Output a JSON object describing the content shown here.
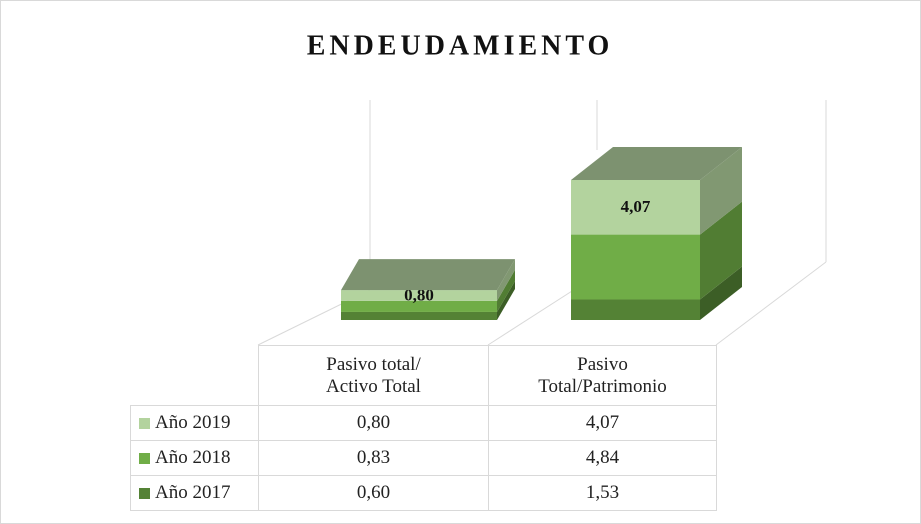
{
  "chart_data": {
    "type": "bar3d_stacked",
    "title": "ENDEUDAMIENTO",
    "categories": [
      "Pasivo total/\nActivo Total",
      "Pasivo\nTotal/Patrimonio"
    ],
    "top_color": "#7d9270",
    "series": [
      {
        "name": "Año 2019",
        "color": "#b3d39e",
        "values": [
          0.8,
          4.07
        ],
        "value_labels": [
          "0,80",
          "4,07"
        ],
        "show_labels": true
      },
      {
        "name": "Año 2018",
        "color": "#70ad47",
        "values": [
          0.83,
          4.84
        ],
        "value_labels": [
          "0,83",
          "4,84"
        ],
        "show_labels": false
      },
      {
        "name": "Año 2017",
        "color": "#548235",
        "values": [
          0.6,
          1.53
        ],
        "value_labels": [
          "0,60",
          "1,53"
        ],
        "show_labels": false
      }
    ]
  }
}
